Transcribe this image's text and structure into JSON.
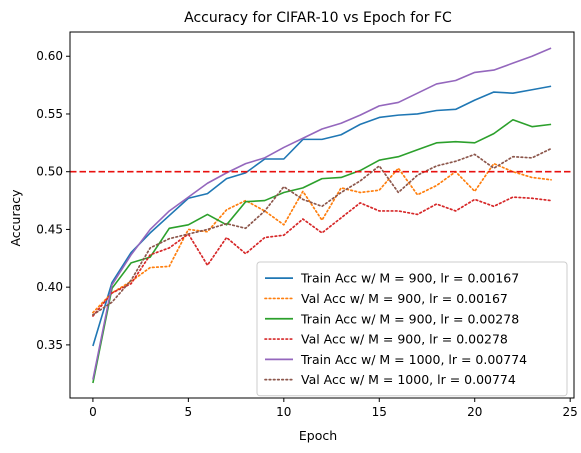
{
  "chart_data": {
    "type": "line",
    "title": "Accuracy for CIFAR-10 vs Epoch for FC",
    "xlabel": "Epoch",
    "ylabel": "Accuracy",
    "xlim": [
      -1.2,
      25.2
    ],
    "ylim": [
      0.304,
      0.621
    ],
    "xticks": [
      0,
      5,
      10,
      15,
      20,
      25
    ],
    "yticks": [
      0.35,
      0.4,
      0.45,
      0.5,
      0.55,
      0.6
    ],
    "xtick_labels": [
      "0",
      "5",
      "10",
      "15",
      "20",
      "25"
    ],
    "ytick_labels": [
      "0.35",
      "0.40",
      "0.45",
      "0.50",
      "0.55",
      "0.60"
    ],
    "grid": false,
    "legend_position": "lower-right",
    "reference_line": {
      "y": 0.5,
      "color": "#e8110f",
      "style": "dashed"
    },
    "x": [
      0,
      1,
      2,
      3,
      4,
      5,
      6,
      7,
      8,
      9,
      10,
      11,
      12,
      13,
      14,
      15,
      16,
      17,
      18,
      19,
      20,
      21,
      22,
      23,
      24
    ],
    "series": [
      {
        "name": "Train Acc w/ M = 900, lr = 0.00167",
        "color": "#1f77b4",
        "style": "solid",
        "values": [
          0.349,
          0.404,
          0.43,
          0.447,
          0.462,
          0.477,
          0.481,
          0.494,
          0.499,
          0.511,
          0.511,
          0.528,
          0.528,
          0.532,
          0.541,
          0.547,
          0.549,
          0.55,
          0.553,
          0.554,
          0.562,
          0.569,
          0.568,
          0.571,
          0.574
        ]
      },
      {
        "name": "Val Acc w/ M = 900, lr = 0.00167",
        "color": "#ff7f0e",
        "style": "dotted",
        "values": [
          0.378,
          0.395,
          0.405,
          0.417,
          0.418,
          0.45,
          0.448,
          0.467,
          0.475,
          0.466,
          0.454,
          0.483,
          0.458,
          0.486,
          0.482,
          0.484,
          0.503,
          0.48,
          0.488,
          0.5,
          0.483,
          0.507,
          0.5,
          0.495,
          0.493
        ]
      },
      {
        "name": "Train Acc w/ M = 900, lr = 0.00278",
        "color": "#2ca02c",
        "style": "solid",
        "values": [
          0.317,
          0.399,
          0.421,
          0.426,
          0.451,
          0.454,
          0.463,
          0.454,
          0.474,
          0.475,
          0.482,
          0.486,
          0.494,
          0.495,
          0.501,
          0.51,
          0.513,
          0.519,
          0.525,
          0.526,
          0.525,
          0.533,
          0.545,
          0.539,
          0.541
        ]
      },
      {
        "name": "Val Acc w/ M = 900, lr = 0.00278",
        "color": "#d62728",
        "style": "dotted",
        "values": [
          0.375,
          0.395,
          0.403,
          0.428,
          0.434,
          0.446,
          0.419,
          0.443,
          0.429,
          0.443,
          0.445,
          0.459,
          0.447,
          0.46,
          0.473,
          0.466,
          0.466,
          0.463,
          0.472,
          0.466,
          0.476,
          0.47,
          0.478,
          0.477,
          0.475
        ]
      },
      {
        "name": "Train Acc w/ M = 1000, lr = 0.00774",
        "color": "#9467bd",
        "style": "solid",
        "values": [
          0.32,
          0.402,
          0.428,
          0.45,
          0.466,
          0.478,
          0.49,
          0.499,
          0.507,
          0.512,
          0.521,
          0.529,
          0.537,
          0.542,
          0.549,
          0.557,
          0.56,
          0.568,
          0.576,
          0.579,
          0.586,
          0.588,
          0.594,
          0.6,
          0.607
        ]
      },
      {
        "name": "Val Acc w/ M = 1000, lr = 0.00774",
        "color": "#8c564b",
        "style": "dotted",
        "values": [
          0.376,
          0.387,
          0.406,
          0.434,
          0.442,
          0.446,
          0.45,
          0.455,
          0.451,
          0.466,
          0.487,
          0.476,
          0.47,
          0.482,
          0.492,
          0.505,
          0.482,
          0.497,
          0.505,
          0.509,
          0.515,
          0.503,
          0.513,
          0.512,
          0.52
        ]
      }
    ]
  }
}
